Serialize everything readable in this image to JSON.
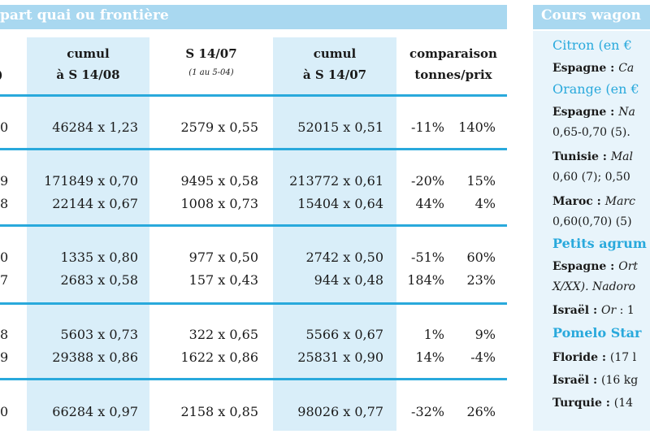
{
  "left_table": {
    "title": "part quai ou frontière",
    "headers": [
      {
        "line1": "",
        "line2": ")",
        "sub": ""
      },
      {
        "line1": "cumul",
        "line2": "à S 14/08",
        "sub": ""
      },
      {
        "line1": "S 14/07",
        "line2": "",
        "sub": "(1 au 5-04)"
      },
      {
        "line1": "cumul",
        "line2": "à S 14/07",
        "sub": ""
      },
      {
        "line1": "comparaison",
        "line2": "tonnes/prix",
        "sub": ""
      }
    ],
    "rows": [
      [
        "0",
        "46284 x 1,23",
        "2579 x 0,55",
        "52015 x 0,51",
        "-11%",
        "140%"
      ],
      [
        "9",
        "171849 x 0,70",
        "9495 x 0,58",
        "213772 x 0,61",
        "-20%",
        "15%"
      ],
      [
        "8",
        "22144 x 0,67",
        "1008 x 0,73",
        "15404 x 0,64",
        "44%",
        "4%"
      ],
      [
        "0",
        "1335 x 0,80",
        "977 x 0,50",
        "2742 x 0,50",
        "-51%",
        "60%"
      ],
      [
        "7",
        "2683 x 0,58",
        "157 x 0,43",
        "944 x 0,48",
        "184%",
        "23%"
      ],
      [
        "8",
        "5603 x 0,73",
        "322 x 0,65",
        "5566 x 0,67",
        "1%",
        "9%"
      ],
      [
        "9",
        "29388 x 0,86",
        "1622 x 0,86",
        "25831 x 0,90",
        "14%",
        "-4%"
      ],
      [
        "0",
        "66284 x 0,97",
        "2158 x 0,85",
        "98026 x 0,77",
        "-32%",
        "26%"
      ]
    ]
  },
  "right_panel": {
    "title": "Cours wagon",
    "lines": [
      {
        "head": "Citron",
        "unit": " (en €"
      },
      {
        "bold": "Espagne : ",
        "italic": "Ca"
      },
      {
        "head": "Orange",
        "unit": " (en €"
      },
      {
        "bold": "Espagne : ",
        "italic": "Na"
      },
      {
        "text": "0,65-0,70 (5)."
      },
      {
        "bold": "Tunisie : ",
        "italic": "Mal"
      },
      {
        "text": "0,60 (7); 0,50"
      },
      {
        "bold": "Maroc : ",
        "italic": "Marc"
      },
      {
        "text": "0,60(0,70) (5)"
      },
      {
        "headbold": "Petits agrum"
      },
      {
        "bold": "Espagne : ",
        "italic": "Ort"
      },
      {
        "italic": "X/XX). Nadoro"
      },
      {
        "bold": "Israël : ",
        "italic": "Or",
        "text": " : 1"
      },
      {
        "headbold": "Pomelo Star"
      },
      {
        "bold": "Floride : ",
        "text": "(17 l"
      },
      {
        "bold": "Israël : ",
        "text": "(16 kg"
      },
      {
        "bold": "Turquie : ",
        "text": "(14"
      }
    ]
  },
  "colors": {
    "accent": "#29a9dc",
    "title_band": "#a9d8f0",
    "column_shade": "#d9eef9",
    "panel_bg": "#e8f4fb"
  }
}
